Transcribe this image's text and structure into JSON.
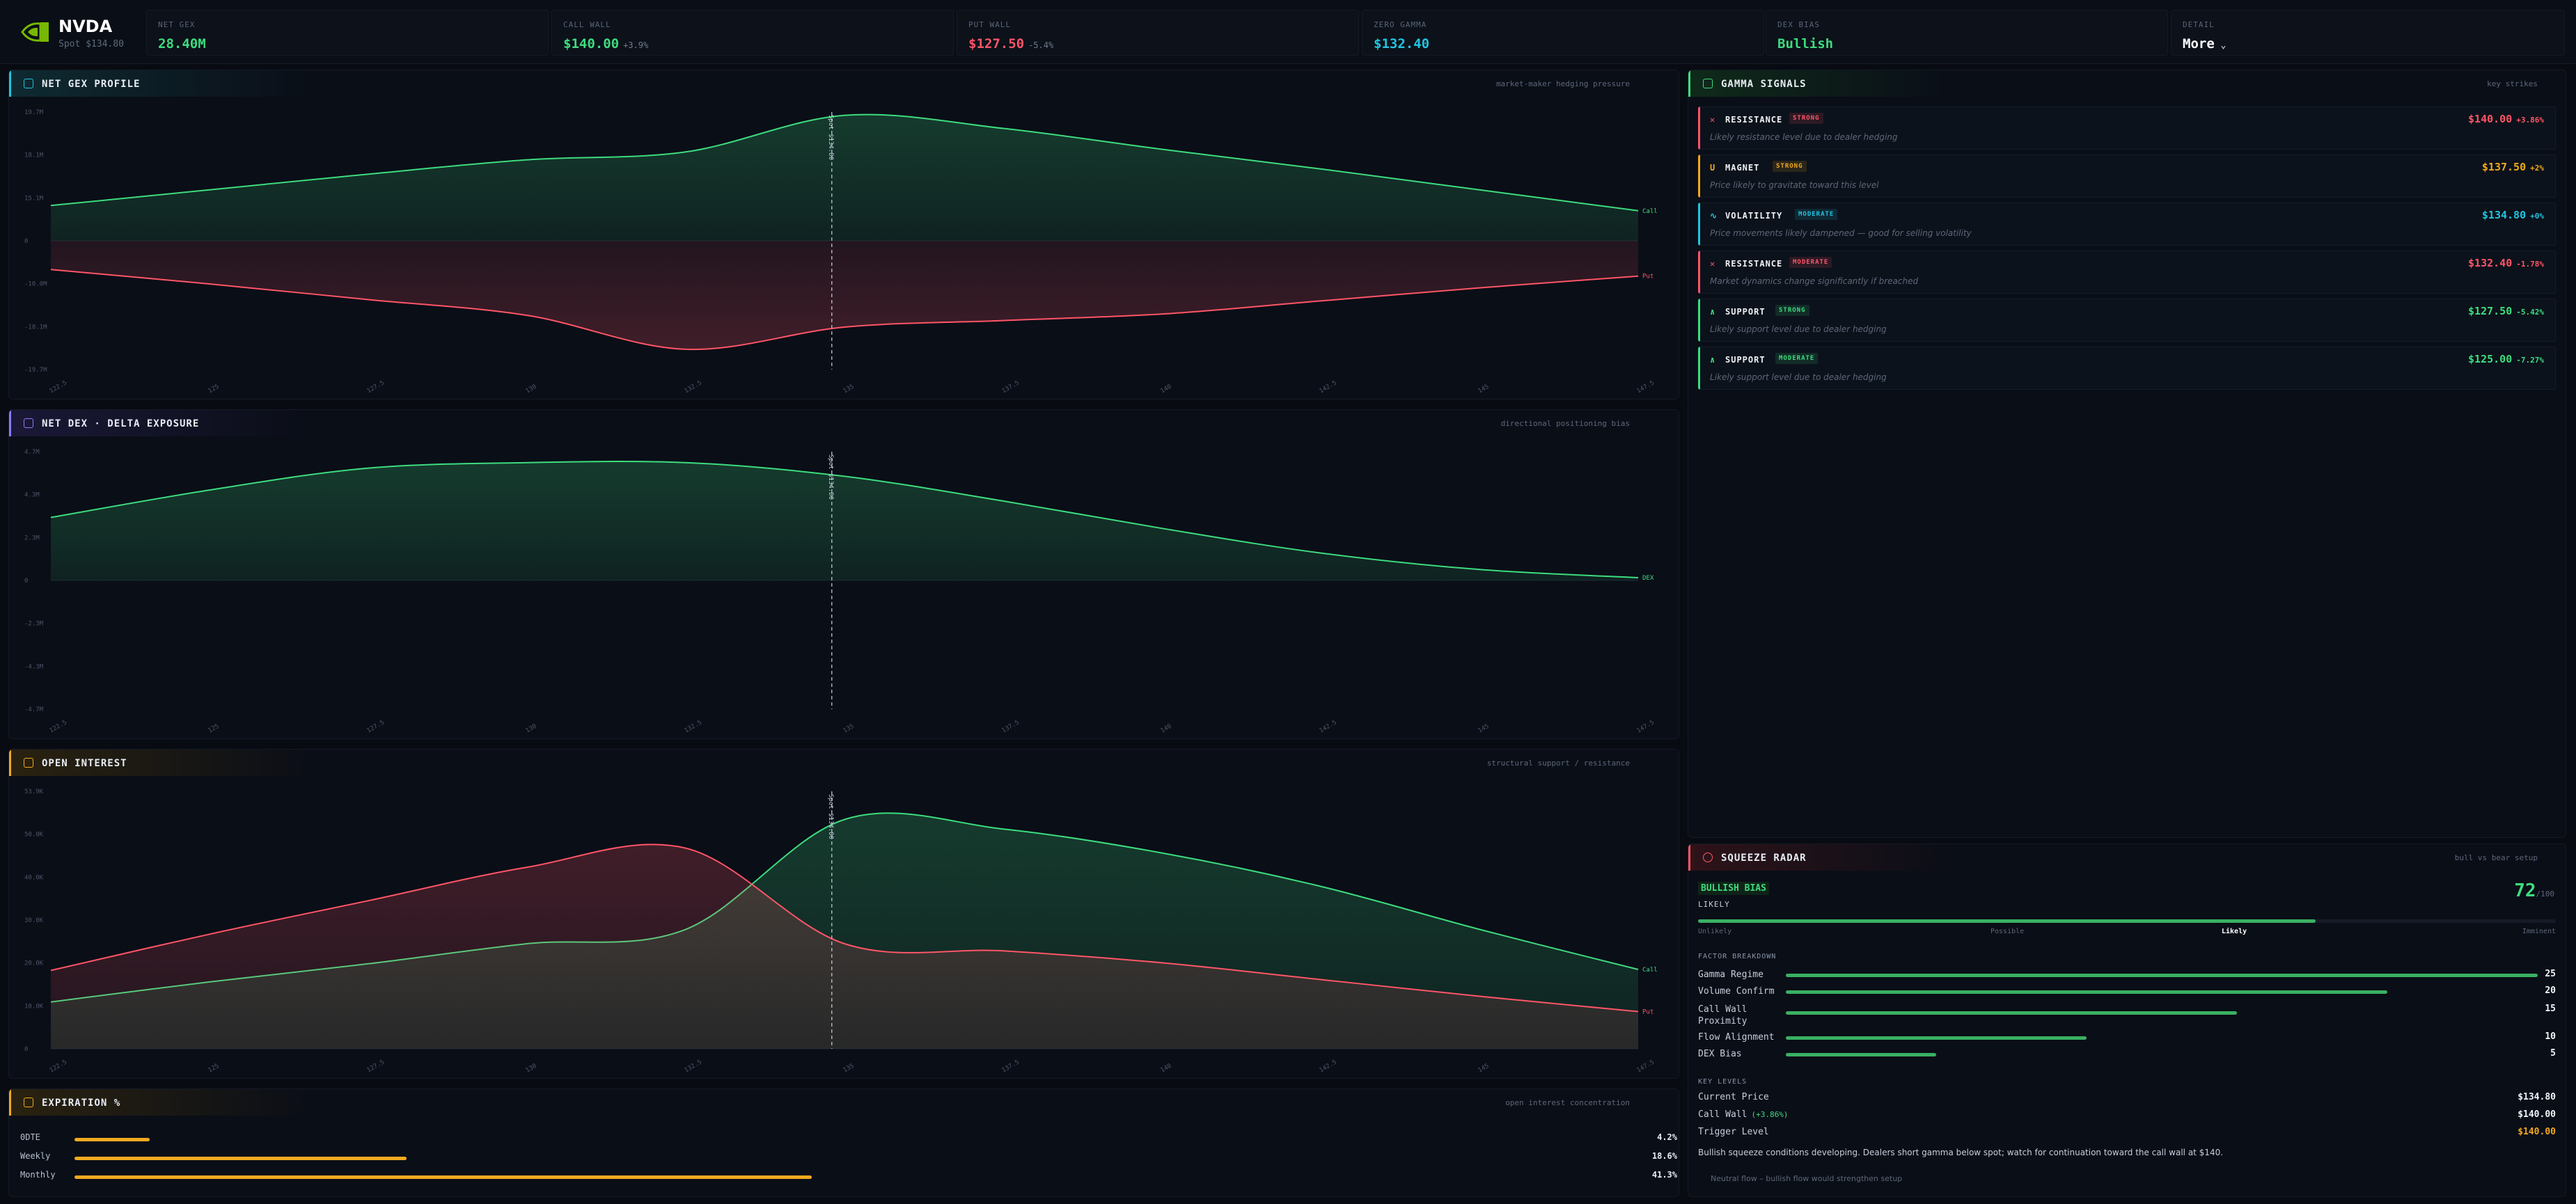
{
  "header": {
    "ticker": "NVDA",
    "spot": "Spot $134.80",
    "stats": [
      {
        "label": "NET GEX",
        "value": "28.40M",
        "change": "",
        "color": "#3ddc7e"
      },
      {
        "label": "CALL WALL",
        "value": "$140.00",
        "change": "+3.9%",
        "color": "#3ddc7e"
      },
      {
        "label": "PUT WALL",
        "value": "$127.50",
        "change": "-5.4%",
        "color": "#ff5567"
      },
      {
        "label": "ZERO GAMMA",
        "value": "$132.40",
        "change": "",
        "color": "#22c4e0"
      },
      {
        "label": "DEX BIAS",
        "value": "Bullish",
        "change": "",
        "color": "#3ddc7e"
      },
      {
        "label": "DETAIL",
        "value": "More",
        "change": "",
        "color": "#ffffff"
      }
    ]
  },
  "panels": {
    "gex": {
      "title": "NET GEX PROFILE",
      "subtitle": "market-maker hedging pressure",
      "accent": "#22c4e0"
    },
    "dex": {
      "title": "NET DEX · DELTA EXPOSURE",
      "subtitle": "directional positioning bias",
      "accent": "#8b7cf6"
    },
    "oi": {
      "title": "OPEN INTEREST",
      "subtitle": "structural support / resistance",
      "accent": "#f2a91f"
    },
    "exp": {
      "title": "EXPIRATION %",
      "subtitle": "open interest concentration",
      "accent": "#f2a91f"
    },
    "signals": {
      "title": "GAMMA SIGNALS",
      "subtitle": "key strikes",
      "accent": "#3ddc7e"
    },
    "squeeze": {
      "title": "SQUEEZE RADAR",
      "subtitle": "bull vs bear setup",
      "accent": "#ff5567"
    }
  },
  "chart_data": [
    {
      "type": "area",
      "title": "NET GEX PROFILE",
      "x": [
        122.5,
        125,
        127.5,
        130,
        132.5,
        135,
        137.5,
        140,
        142.5,
        145,
        147.5
      ],
      "x_tick_labels": [
        "122.5",
        "125",
        "127.5",
        "130",
        "132.5",
        "135",
        "137.5",
        "140",
        "142.5",
        "145",
        "147.5"
      ],
      "y_tick_labels": [
        "19.7M",
        "18.1M",
        "15.1M",
        "0",
        "-10.0M",
        "-18.1M",
        "-19.7M"
      ],
      "ylim": [
        -19.7,
        19.7
      ],
      "series": [
        {
          "name": "Call",
          "color": "#3ddc7e",
          "values": [
            5.4,
            7.8,
            10.2,
            12.4,
            13.6,
            19.2,
            17.2,
            14.0,
            11.0,
            7.8,
            4.6
          ]
        },
        {
          "name": "Put",
          "color": "#ff5567",
          "values": [
            -4.4,
            -6.6,
            -9.0,
            -11.4,
            -16.6,
            -13.2,
            -12.2,
            -11.2,
            -9.2,
            -7.2,
            -5.4
          ]
        }
      ],
      "spot_label": "Spot $134.80",
      "spot": 134.8
    },
    {
      "type": "area",
      "title": "NET DEX · DELTA EXPOSURE",
      "x": [
        122.5,
        125,
        127.5,
        130,
        132.5,
        135,
        137.5,
        140,
        142.5,
        145,
        147.5
      ],
      "x_tick_labels": [
        "122.5",
        "125",
        "127.5",
        "130",
        "132.5",
        "135",
        "137.5",
        "140",
        "142.5",
        "145",
        "147.5"
      ],
      "y_tick_labels": [
        "4.7M",
        "4.3M",
        "2.3M",
        "0",
        "-2.3M",
        "-4.3M",
        "-4.7M"
      ],
      "ylim": [
        -4.7,
        4.7
      ],
      "series": [
        {
          "name": "DEX",
          "color": "#3ddc7e",
          "values": [
            2.3,
            3.3,
            4.1,
            4.3,
            4.3,
            3.8,
            2.9,
            1.9,
            1.0,
            0.4,
            0.1
          ]
        }
      ],
      "spot_label": "Spot $134.80",
      "spot": 134.8
    },
    {
      "type": "area",
      "title": "OPEN INTEREST",
      "x": [
        122.5,
        125,
        127.5,
        130,
        132.5,
        135,
        137.5,
        140,
        142.5,
        145,
        147.5
      ],
      "x_tick_labels": [
        "122.5",
        "125",
        "127.5",
        "130",
        "132.5",
        "135",
        "137.5",
        "140",
        "142.5",
        "145",
        "147.5"
      ],
      "y_tick_labels": [
        "53.9K",
        "50.0K",
        "40.0K",
        "30.0K",
        "20.0K",
        "10.0K",
        "0"
      ],
      "ylim": [
        0,
        53.9
      ],
      "series": [
        {
          "name": "Call",
          "color": "#3ddc7e",
          "values": [
            9.8,
            14.0,
            17.8,
            22.0,
            25.0,
            48.0,
            46.0,
            41.0,
            34.0,
            25.0,
            16.6
          ]
        },
        {
          "name": "Put",
          "color": "#ff5567",
          "values": [
            16.4,
            24.0,
            31.0,
            38.0,
            42.0,
            22.0,
            20.5,
            18.0,
            14.5,
            11.0,
            7.8
          ]
        }
      ],
      "spot_label": "Spot $134.80",
      "spot": 134.8
    },
    {
      "type": "bar",
      "title": "EXPIRATION %",
      "categories": [
        "0DTE",
        "Weekly",
        "Monthly"
      ],
      "values": [
        4.2,
        18.6,
        41.3
      ],
      "value_labels": [
        "4.2%",
        "18.6%",
        "41.3%"
      ]
    }
  ],
  "signals": [
    {
      "icon": "✕",
      "name": "RESISTANCE",
      "badge": "STRONG",
      "price": "$140.00",
      "pct": "+3.86%",
      "desc": "Likely resistance level due to dealer hedging",
      "color": "#ff5567"
    },
    {
      "icon": "U",
      "name": "MAGNET",
      "badge": "STRONG",
      "price": "$137.50",
      "pct": "+2%",
      "desc": "Price likely to gravitate toward this level",
      "color": "#f2a91f"
    },
    {
      "icon": "∿",
      "name": "VOLATILITY",
      "badge": "MODERATE",
      "price": "$134.80",
      "pct": "+0%",
      "desc": "Price movements likely dampened — good for selling volatility",
      "color": "#22c4e0"
    },
    {
      "icon": "✕",
      "name": "RESISTANCE",
      "badge": "MODERATE",
      "price": "$132.40",
      "pct": "-1.78%",
      "desc": "Market dynamics change significantly if breached",
      "color": "#ff5567"
    },
    {
      "icon": "∧",
      "name": "SUPPORT",
      "badge": "STRONG",
      "price": "$127.50",
      "pct": "-5.42%",
      "desc": "Likely support level due to dealer hedging",
      "color": "#3ddc7e"
    },
    {
      "icon": "∧",
      "name": "SUPPORT",
      "badge": "MODERATE",
      "price": "$125.00",
      "pct": "-7.27%",
      "desc": "Likely support level due to dealer hedging",
      "color": "#3ddc7e"
    }
  ],
  "squeeze": {
    "bias": "BULLISH BIAS",
    "likelihood": "LIKELY",
    "score": "72",
    "score_max": "/100",
    "score_fraction": 0.72,
    "scale": [
      "Unlikely",
      "Possible",
      "Likely",
      "Imminent"
    ],
    "factor_header": "FACTOR BREAKDOWN",
    "factors": [
      {
        "name": "Gamma Regime",
        "value": "25",
        "fill": 1.0
      },
      {
        "name": "Volume Confirm",
        "value": "20",
        "fill": 0.8
      },
      {
        "name": "Call Wall\nProximity",
        "value": "15",
        "fill": 0.6
      },
      {
        "name": "Flow Alignment",
        "value": "10",
        "fill": 0.4
      },
      {
        "name": "DEX Bias",
        "value": "5",
        "fill": 0.2
      }
    ],
    "levels_header": "KEY LEVELS",
    "levels": [
      {
        "name": "Current Price",
        "tag": "",
        "value": "$134.80",
        "color": "#f1f4f9"
      },
      {
        "name": "Call Wall",
        "tag": "(+3.86%)",
        "value": "$140.00",
        "color": "#f1f4f9"
      },
      {
        "name": "Trigger Level",
        "tag": "",
        "value": "$140.00",
        "color": "#f2a91f"
      }
    ],
    "note": "Bullish squeeze conditions developing. Dealers short gamma below spot; watch for continuation toward the call wall at $140.",
    "footnote": "Neutral flow – bullish flow would strengthen setup"
  }
}
